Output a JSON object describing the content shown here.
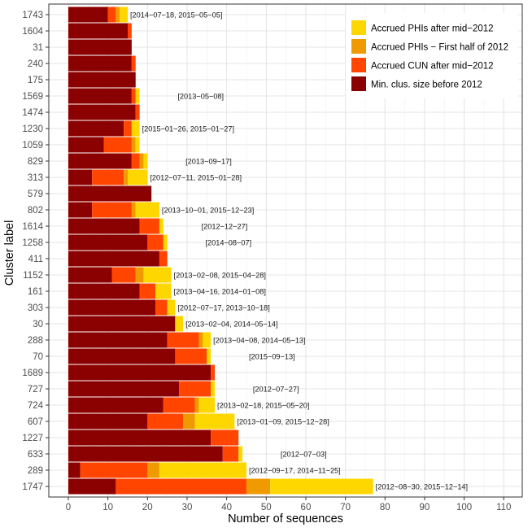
{
  "chart_data": {
    "type": "bar",
    "orientation": "horizontal",
    "stacked": true,
    "xlabel": "Number of sequences",
    "ylabel": "Cluster label",
    "xlim": [
      -5,
      112
    ],
    "xticks": [
      "0",
      "10",
      "20",
      "30",
      "40",
      "50",
      "60",
      "70",
      "80",
      "90",
      "100",
      "110"
    ],
    "grid": true,
    "legend_position": "top-right",
    "categories": [
      "1743",
      "1604",
      "31",
      "240",
      "175",
      "1569",
      "1474",
      "1230",
      "1059",
      "829",
      "313",
      "579",
      "802",
      "1614",
      "1258",
      "411",
      "1152",
      "161",
      "303",
      "30",
      "288",
      "70",
      "1689",
      "727",
      "724",
      "607",
      "1227",
      "633",
      "289",
      "1747"
    ],
    "series": [
      {
        "name": "Min. clus. size before 2012",
        "color": "#8B0000",
        "values": [
          10,
          15,
          16,
          16,
          17,
          16,
          17,
          14,
          9,
          16,
          6,
          21,
          6,
          18,
          20,
          23,
          11,
          18,
          22,
          27,
          25,
          27,
          36,
          28,
          24,
          20,
          36,
          39,
          3,
          12
        ]
      },
      {
        "name": "Accrued CUN after mid−2012",
        "color": "#FF4500",
        "values": [
          2,
          1,
          0,
          1,
          0,
          1,
          1,
          2,
          7,
          2,
          8,
          0,
          10,
          5,
          4,
          2,
          6,
          4,
          3,
          0,
          8,
          8,
          1,
          8,
          8,
          9,
          7,
          4,
          17,
          33
        ]
      },
      {
        "name": "Accrued PHIs − First half of 2012",
        "color": "#EE9A00",
        "values": [
          1,
          0,
          0,
          0,
          0,
          0,
          0,
          0,
          1,
          1,
          1,
          0,
          1,
          0,
          0,
          0,
          2,
          0,
          0,
          0,
          1,
          0,
          0,
          0,
          1,
          3,
          0,
          0,
          3,
          6
        ]
      },
      {
        "name": "Accrued PHIs after mid−2012",
        "color": "#FFD700",
        "values": [
          2,
          0,
          0,
          0,
          0,
          1,
          0,
          2,
          1,
          1,
          5,
          0,
          6,
          1,
          1,
          0,
          7,
          4,
          2,
          2,
          2,
          1,
          0,
          1,
          4,
          10,
          0,
          1,
          22,
          26
        ]
      }
    ],
    "annotations": [
      "[2014−07−18, 2015−05−05]",
      "",
      "",
      "",
      "",
      "[2013−05−08]",
      "",
      "[2015−01−26, 2015−01−27]",
      "",
      "[2013−09−17]",
      "[2012−07−11, 2015−01−28]",
      "",
      "[2013−10−01, 2015−12−23]",
      "[2012−12−27]",
      "[2014−08−07]",
      "",
      "[2013−02−08, 2015−04−28]",
      "[2013−04−16, 2014−01−08]",
      "[2012−07−17, 2013−10−18]",
      "[2013−02−04, 2014−05−14]",
      "[2013−04−08, 2014−05−13]",
      "[2015−09−13]",
      "",
      "[2012−07−27]",
      "[2013−02−18, 2015−05−20]",
      "[2013−01−09, 2015−12−28]",
      "",
      "[2012−07−03]",
      "[2012−09−17, 2014−11−25]",
      "[2012−08−30, 2015−12−14]"
    ],
    "annotation_offsets": [
      0,
      0,
      0,
      0,
      0,
      9,
      0,
      0,
      0,
      9,
      0,
      0,
      0,
      9,
      9,
      0,
      0,
      0,
      0,
      0,
      0,
      9,
      0,
      9,
      0,
      0,
      0,
      9,
      0,
      0
    ],
    "legend_order": [
      3,
      2,
      1,
      0
    ]
  }
}
